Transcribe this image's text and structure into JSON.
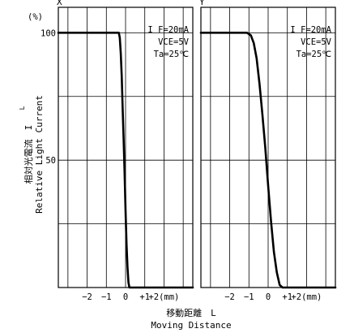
{
  "chart_data": {
    "type": "line",
    "y_unit": "(%)",
    "ylabel_jp": "相対光電流　I",
    "ylabel_jp_sub": "L",
    "ylabel_en": "Relative Light Current",
    "xlabel_jp": "移動距離　L",
    "xlabel_en": "Moving Distance",
    "yticks": [
      {
        "value": 100,
        "label": "100"
      },
      {
        "value": 50,
        "label": "50"
      }
    ],
    "ylim": [
      0,
      110
    ],
    "xlim": [
      -3.5,
      3.5
    ],
    "grid": true,
    "panels": [
      {
        "title": "X",
        "conditions": [
          "I F=20mA",
          "VCE=5V",
          "Ta=25℃"
        ],
        "xticks": [
          {
            "value": -2,
            "label": "−2"
          },
          {
            "value": -1,
            "label": "−1"
          },
          {
            "value": 0,
            "label": "0"
          },
          {
            "value": 1,
            "label": "+1"
          },
          {
            "value": 2,
            "label": "+2(mm)"
          }
        ],
        "series": [
          {
            "x": [
              -3.5,
              -0.35,
              -0.3,
              -0.25,
              -0.2,
              -0.15,
              -0.1,
              -0.05,
              0.0,
              0.05,
              0.1,
              0.15,
              0.2,
              3.5
            ],
            "y": [
              100,
              100,
              98,
              92,
              83,
              70,
              58,
              45,
              30,
              17,
              8,
              2,
              0,
              0
            ]
          }
        ]
      },
      {
        "title": "Y",
        "conditions": [
          "I F=20mA",
          "VCE=5V",
          "Ta=25℃"
        ],
        "xticks": [
          {
            "value": -2,
            "label": "−2"
          },
          {
            "value": -1,
            "label": "−1"
          },
          {
            "value": 0,
            "label": "0"
          },
          {
            "value": 1,
            "label": "+1"
          },
          {
            "value": 2,
            "label": "+2(mm)"
          }
        ],
        "series": [
          {
            "x": [
              -3.5,
              -1.1,
              -0.9,
              -0.75,
              -0.6,
              -0.45,
              -0.3,
              -0.15,
              0.0,
              0.15,
              0.3,
              0.45,
              0.6,
              0.75,
              3.5
            ],
            "y": [
              100,
              100,
              99,
              96,
              90,
              80,
              68,
              55,
              40,
              26,
              14,
              6,
              1,
              0,
              0
            ]
          }
        ]
      }
    ]
  }
}
